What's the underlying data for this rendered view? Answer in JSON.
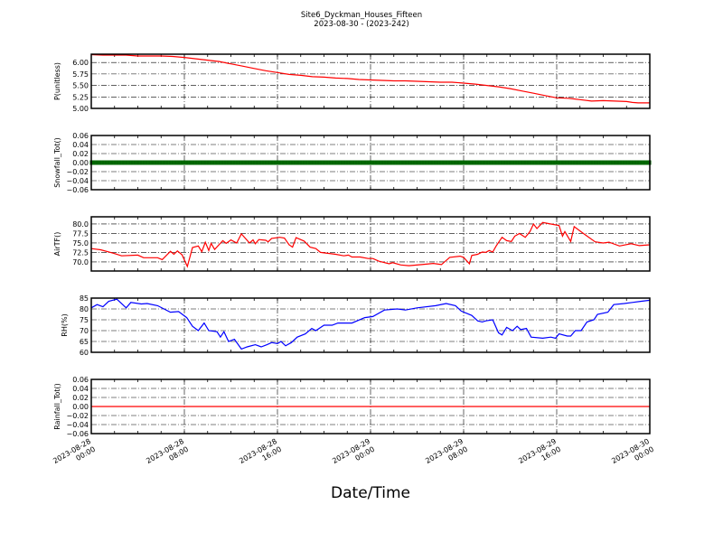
{
  "chart_data": {
    "type": "line",
    "title": "Site6_Dyckman_Houses_Fifteen",
    "subtitle": "2023-08-30 - (2023-242)",
    "xlabel": "Date/Time",
    "x_unit": "hours since 2023-08-28 00:00",
    "xlim": [
      0,
      48
    ],
    "x_ticks": [
      {
        "h": 0,
        "l1": "2023-08-28",
        "l2": "00:00"
      },
      {
        "h": 8,
        "l1": "2023-08-28",
        "l2": "08:00"
      },
      {
        "h": 16,
        "l1": "2023-08-28",
        "l2": "16:00"
      },
      {
        "h": 24,
        "l1": "2023-08-29",
        "l2": "00:00"
      },
      {
        "h": 32,
        "l1": "2023-08-29",
        "l2": "08:00"
      },
      {
        "h": 40,
        "l1": "2023-08-29",
        "l2": "16:00"
      },
      {
        "h": 48,
        "l1": "2023-08-30",
        "l2": "00:00"
      }
    ],
    "grid": true,
    "panels": [
      {
        "ylabel": "P(unitless)",
        "color": "#ff0000",
        "style": "line",
        "ylim": [
          5.0,
          6.18
        ],
        "yticks": [
          "5.00",
          "5.25",
          "5.50",
          "5.75",
          "6.00"
        ],
        "points": [
          [
            0,
            6.17
          ],
          [
            1,
            6.16
          ],
          [
            2,
            6.16
          ],
          [
            3,
            6.16
          ],
          [
            4,
            6.14
          ],
          [
            6,
            6.14
          ],
          [
            7,
            6.13
          ],
          [
            8,
            6.11
          ],
          [
            9,
            6.08
          ],
          [
            10,
            6.05
          ],
          [
            11,
            6.02
          ],
          [
            12,
            5.97
          ],
          [
            13,
            5.92
          ],
          [
            14,
            5.87
          ],
          [
            15,
            5.82
          ],
          [
            16,
            5.78
          ],
          [
            17,
            5.74
          ],
          [
            18,
            5.72
          ],
          [
            19,
            5.69
          ],
          [
            20,
            5.68
          ],
          [
            21,
            5.66
          ],
          [
            22,
            5.65
          ],
          [
            23,
            5.63
          ],
          [
            24,
            5.62
          ],
          [
            25,
            5.61
          ],
          [
            26,
            5.6
          ],
          [
            27,
            5.6
          ],
          [
            28,
            5.59
          ],
          [
            29,
            5.58
          ],
          [
            30,
            5.57
          ],
          [
            31,
            5.57
          ],
          [
            32,
            5.55
          ],
          [
            33,
            5.53
          ],
          [
            34,
            5.5
          ],
          [
            35,
            5.47
          ],
          [
            36,
            5.43
          ],
          [
            37,
            5.38
          ],
          [
            38,
            5.33
          ],
          [
            39,
            5.28
          ],
          [
            40,
            5.23
          ],
          [
            41,
            5.22
          ],
          [
            42,
            5.19
          ],
          [
            43,
            5.16
          ],
          [
            44,
            5.17
          ],
          [
            45,
            5.16
          ],
          [
            46,
            5.15
          ],
          [
            46.5,
            5.13
          ],
          [
            47,
            5.12
          ],
          [
            48,
            5.12
          ]
        ]
      },
      {
        "ylabel": "Snowfall_Tot()",
        "color": "#008000",
        "style": "markers",
        "ylim": [
          -0.06,
          0.06
        ],
        "yticks": [
          "−0.06",
          "−0.04",
          "−0.02",
          "0.00",
          "0.02",
          "0.04",
          "0.06"
        ],
        "points": [
          [
            0,
            0
          ],
          [
            48,
            0
          ]
        ]
      },
      {
        "ylabel": "AirTF()",
        "color": "#ff0000",
        "style": "line",
        "ylim": [
          67.6,
          81.9
        ],
        "yticks": [
          "70.0",
          "72.5",
          "75.0",
          "77.5",
          "80.0"
        ],
        "points": [
          [
            0,
            73.5
          ],
          [
            0.8,
            73.2
          ],
          [
            1.9,
            72.3
          ],
          [
            2.6,
            71.6
          ],
          [
            4,
            71.8
          ],
          [
            4.5,
            71.1
          ],
          [
            5.7,
            71.1
          ],
          [
            6.1,
            70.6
          ],
          [
            6.8,
            72.8
          ],
          [
            7.1,
            72
          ],
          [
            7.4,
            72.9
          ],
          [
            7.8,
            71.9
          ],
          [
            8.26,
            68.8
          ],
          [
            8.7,
            73.8
          ],
          [
            9.2,
            74.2
          ],
          [
            9.5,
            72.7
          ],
          [
            9.8,
            75.2
          ],
          [
            10.1,
            73
          ],
          [
            10.3,
            74.9
          ],
          [
            10.6,
            73.3
          ],
          [
            11.3,
            75.6
          ],
          [
            11.6,
            74.9
          ],
          [
            12,
            75.8
          ],
          [
            12.5,
            75
          ],
          [
            12.9,
            77.4
          ],
          [
            13.6,
            75
          ],
          [
            13.9,
            75.8
          ],
          [
            14.1,
            74.8
          ],
          [
            14.4,
            75.9
          ],
          [
            15,
            75.7
          ],
          [
            15.2,
            75.3
          ],
          [
            15.5,
            76.2
          ],
          [
            16.2,
            76.5
          ],
          [
            16.6,
            76.3
          ],
          [
            17,
            74.5
          ],
          [
            17.3,
            73.9
          ],
          [
            17.6,
            76.4
          ],
          [
            18.3,
            75.5
          ],
          [
            18.8,
            73.9
          ],
          [
            19.3,
            73.5
          ],
          [
            19.7,
            72.5
          ],
          [
            21,
            72
          ],
          [
            21.7,
            71.6
          ],
          [
            22.1,
            71.8
          ],
          [
            22.4,
            71.3
          ],
          [
            23.1,
            71.3
          ],
          [
            23.8,
            70.9
          ],
          [
            24.2,
            70.9
          ],
          [
            24.7,
            70.2
          ],
          [
            25.6,
            69.5
          ],
          [
            25.9,
            69.8
          ],
          [
            26.6,
            69.2
          ],
          [
            27.3,
            69
          ],
          [
            28.4,
            69.3
          ],
          [
            29.4,
            69.6
          ],
          [
            30.1,
            69.3
          ],
          [
            30.8,
            71.2
          ],
          [
            31.7,
            71.5
          ],
          [
            32,
            71.2
          ],
          [
            32.5,
            69.5
          ],
          [
            32.7,
            71.7
          ],
          [
            33.2,
            72
          ],
          [
            33.6,
            72.6
          ],
          [
            33.9,
            72.5
          ],
          [
            34.2,
            73
          ],
          [
            34.5,
            72.6
          ],
          [
            34.8,
            74.2
          ],
          [
            35.3,
            76.5
          ],
          [
            35.7,
            75.6
          ],
          [
            36.1,
            75.4
          ],
          [
            36.4,
            76.8
          ],
          [
            36.8,
            77.5
          ],
          [
            37.3,
            76.5
          ],
          [
            37.7,
            78
          ],
          [
            38,
            80
          ],
          [
            38.3,
            78.8
          ],
          [
            38.8,
            80.4
          ],
          [
            39.5,
            80
          ],
          [
            40.2,
            79.6
          ],
          [
            40.5,
            76.8
          ],
          [
            40.7,
            78
          ],
          [
            41.2,
            75.4
          ],
          [
            41.5,
            79.3
          ],
          [
            42.3,
            77.5
          ],
          [
            43.3,
            75.3
          ],
          [
            44,
            75
          ],
          [
            44.5,
            75.2
          ],
          [
            45.4,
            74.2
          ],
          [
            46.4,
            74.8
          ],
          [
            47.1,
            74.3
          ],
          [
            48,
            74.5
          ]
        ]
      },
      {
        "ylabel": "RH(%)",
        "color": "#0000ff",
        "style": "line",
        "ylim": [
          60,
          85
        ],
        "yticks": [
          "60",
          "65",
          "70",
          "75",
          "80",
          "85"
        ],
        "points": [
          [
            0,
            80.5
          ],
          [
            0.5,
            82
          ],
          [
            1,
            81
          ],
          [
            1.5,
            83.5
          ],
          [
            2.2,
            84.5
          ],
          [
            3,
            80.5
          ],
          [
            3.4,
            83
          ],
          [
            4.3,
            82.3
          ],
          [
            4.8,
            82.5
          ],
          [
            5.7,
            81.5
          ],
          [
            6.8,
            78.5
          ],
          [
            7.5,
            78.8
          ],
          [
            8.2,
            76
          ],
          [
            8.7,
            72
          ],
          [
            9.2,
            70
          ],
          [
            9.7,
            73.5
          ],
          [
            10.1,
            70
          ],
          [
            10.8,
            69.5
          ],
          [
            11.1,
            67
          ],
          [
            11.4,
            69.5
          ],
          [
            11.8,
            65
          ],
          [
            12.3,
            66
          ],
          [
            12.9,
            61.5
          ],
          [
            13.4,
            62.5
          ],
          [
            14.1,
            63.5
          ],
          [
            14.6,
            62.5
          ],
          [
            15.1,
            63.5
          ],
          [
            15.5,
            64.5
          ],
          [
            16,
            64
          ],
          [
            16.3,
            65
          ],
          [
            16.7,
            63
          ],
          [
            17.2,
            64.5
          ],
          [
            17.7,
            67
          ],
          [
            18.4,
            68.5
          ],
          [
            18.95,
            71
          ],
          [
            19.3,
            70
          ],
          [
            20,
            72.5
          ],
          [
            20.7,
            72.5
          ],
          [
            21.2,
            73.5
          ],
          [
            21.7,
            73.5
          ],
          [
            22.4,
            73.5
          ],
          [
            23.5,
            76
          ],
          [
            24.2,
            76.5
          ],
          [
            25.2,
            79.5
          ],
          [
            26.3,
            80
          ],
          [
            27,
            79.5
          ],
          [
            28,
            80.5
          ],
          [
            29.6,
            81.5
          ],
          [
            30.5,
            82.5
          ],
          [
            31.3,
            81.5
          ],
          [
            31.8,
            79
          ],
          [
            32.7,
            77
          ],
          [
            33.2,
            74.5
          ],
          [
            33.6,
            74
          ],
          [
            33.9,
            74.5
          ],
          [
            34.5,
            75
          ],
          [
            35,
            69
          ],
          [
            35.3,
            68
          ],
          [
            35.7,
            71.5
          ],
          [
            36.2,
            70
          ],
          [
            36.6,
            72
          ],
          [
            36.9,
            70.5
          ],
          [
            37.4,
            71
          ],
          [
            37.8,
            67
          ],
          [
            38.8,
            66.5
          ],
          [
            39.5,
            67
          ],
          [
            39.9,
            66.5
          ],
          [
            40.2,
            68.5
          ],
          [
            40.9,
            67.5
          ],
          [
            41.2,
            67.5
          ],
          [
            41.6,
            70
          ],
          [
            42.1,
            70
          ],
          [
            42.6,
            74
          ],
          [
            43.2,
            75
          ],
          [
            43.5,
            77.5
          ],
          [
            44.4,
            78.5
          ],
          [
            44.9,
            82
          ],
          [
            45.8,
            82.5
          ],
          [
            46.5,
            83
          ],
          [
            47.2,
            83.5
          ],
          [
            48,
            84
          ]
        ]
      },
      {
        "ylabel": "Rainfall_Tot()",
        "color": "#ff0000",
        "style": "line",
        "ylim": [
          -0.06,
          0.06
        ],
        "yticks": [
          "−0.06",
          "−0.04",
          "−0.02",
          "0.00",
          "0.02",
          "0.04",
          "0.06"
        ],
        "points": [
          [
            0,
            0
          ],
          [
            48,
            0
          ]
        ]
      }
    ]
  }
}
